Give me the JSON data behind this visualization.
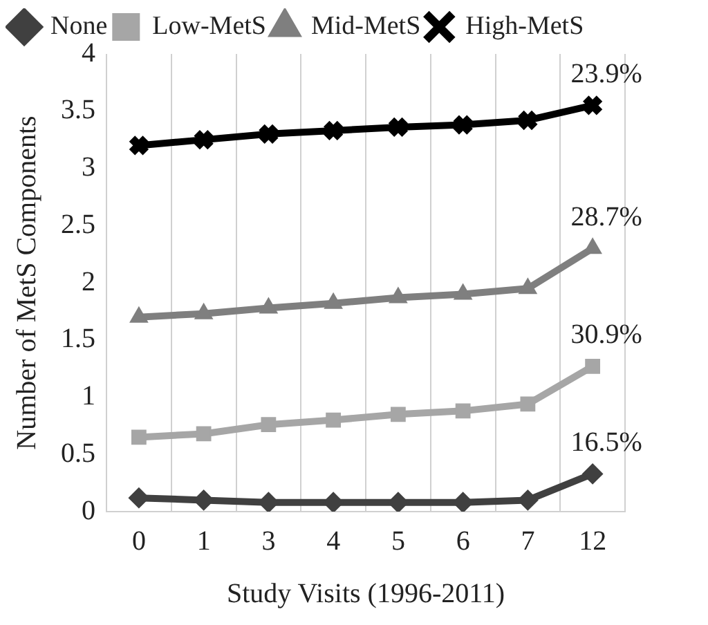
{
  "chart_data": {
    "type": "line",
    "xlabel": "Study Visits (1996-2011)",
    "ylabel": "Number of MetS Components",
    "categories": [
      "0",
      "1",
      "3",
      "4",
      "5",
      "6",
      "7",
      "12"
    ],
    "series": [
      {
        "name": "None",
        "color": "#404040",
        "marker": "diamond",
        "values": [
          0.12,
          0.1,
          0.08,
          0.08,
          0.08,
          0.08,
          0.1,
          0.33
        ]
      },
      {
        "name": "Low-MetS",
        "color": "#a6a6a6",
        "marker": "square",
        "values": [
          0.65,
          0.68,
          0.76,
          0.8,
          0.85,
          0.88,
          0.94,
          1.27
        ]
      },
      {
        "name": "Mid-MetS",
        "color": "#7f7f7f",
        "marker": "triangle",
        "values": [
          1.7,
          1.73,
          1.78,
          1.82,
          1.87,
          1.9,
          1.95,
          2.3
        ]
      },
      {
        "name": "High-MetS",
        "color": "#000000",
        "marker": "cross",
        "values": [
          3.2,
          3.25,
          3.3,
          3.33,
          3.36,
          3.38,
          3.42,
          3.55
        ]
      }
    ],
    "ylim": [
      0,
      4
    ],
    "yticks": [
      0,
      0.5,
      1,
      1.5,
      2,
      2.5,
      3,
      3.5,
      4
    ],
    "grid": "x",
    "legend": "top",
    "annotations": [
      {
        "text": "16.5%",
        "x": "12",
        "y": 0.33
      },
      {
        "text": "30.9%",
        "x": "12",
        "y": 1.27
      },
      {
        "text": "28.7%",
        "x": "12",
        "y": 2.3
      },
      {
        "text": "23.9%",
        "x": "12",
        "y": 3.55
      }
    ]
  }
}
